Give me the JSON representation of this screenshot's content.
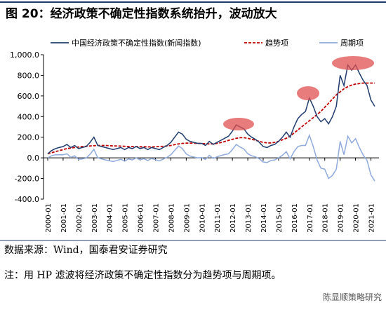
{
  "chart_data": {
    "type": "line",
    "title": "图 20：经济政策不确定性指数系统抬升，波动放大",
    "source": "数据来源：Wind，国泰君安证券研究",
    "note": "注：用 HP 滤波将经济政策不确定性指数分为趋势项与周期项。",
    "watermark": "陈显顺策略研究",
    "x": [
      "2000-01",
      "2000-04",
      "2000-07",
      "2000-10",
      "2001-01",
      "2001-04",
      "2001-07",
      "2001-10",
      "2002-01",
      "2002-04",
      "2002-07",
      "2002-10",
      "2003-01",
      "2003-04",
      "2003-07",
      "2003-10",
      "2004-01",
      "2004-04",
      "2004-07",
      "2004-10",
      "2005-01",
      "2005-04",
      "2005-07",
      "2005-10",
      "2006-01",
      "2006-04",
      "2006-07",
      "2006-10",
      "2007-01",
      "2007-04",
      "2007-07",
      "2007-10",
      "2008-01",
      "2008-04",
      "2008-07",
      "2008-10",
      "2009-01",
      "2009-04",
      "2009-07",
      "2009-10",
      "2010-01",
      "2010-04",
      "2010-07",
      "2010-10",
      "2011-01",
      "2011-04",
      "2011-07",
      "2011-10",
      "2012-01",
      "2012-04",
      "2012-07",
      "2012-10",
      "2013-01",
      "2013-04",
      "2013-07",
      "2013-10",
      "2014-01",
      "2014-04",
      "2014-07",
      "2014-10",
      "2015-01",
      "2015-04",
      "2015-07",
      "2015-10",
      "2016-01",
      "2016-04",
      "2016-07",
      "2016-10",
      "2017-01",
      "2017-04",
      "2017-07",
      "2017-10",
      "2018-01",
      "2018-04",
      "2018-07",
      "2018-10",
      "2019-01",
      "2019-04",
      "2019-07",
      "2019-10",
      "2020-01",
      "2020-04",
      "2020-07",
      "2020-10",
      "2021-01",
      "2021-04"
    ],
    "series": [
      {
        "name": "中国经济政策不确定性指数(新闻指数)",
        "color": "#1f3c6e",
        "style": "solid",
        "values": [
          40,
          70,
          90,
          100,
          110,
          130,
          100,
          120,
          90,
          100,
          110,
          150,
          200,
          120,
          110,
          100,
          90,
          80,
          90,
          100,
          80,
          100,
          90,
          110,
          90,
          100,
          80,
          100,
          90,
          80,
          100,
          120,
          150,
          200,
          250,
          230,
          180,
          160,
          150,
          140,
          140,
          120,
          160,
          130,
          150,
          170,
          190,
          210,
          260,
          320,
          300,
          280,
          230,
          200,
          180,
          150,
          110,
          100,
          120,
          130,
          160,
          200,
          250,
          200,
          300,
          380,
          420,
          450,
          580,
          500,
          400,
          350,
          380,
          330,
          400,
          500,
          800,
          700,
          900,
          850,
          900,
          820,
          750,
          700,
          560,
          500
        ]
      },
      {
        "name": "趋势项",
        "color": "#c00000",
        "style": "dashed",
        "values": [
          40,
          50,
          60,
          70,
          80,
          90,
          95,
          100,
          105,
          110,
          112,
          115,
          118,
          120,
          120,
          120,
          118,
          116,
          115,
          114,
          112,
          110,
          110,
          110,
          108,
          108,
          106,
          106,
          108,
          110,
          112,
          115,
          120,
          128,
          135,
          140,
          142,
          143,
          142,
          140,
          138,
          136,
          135,
          136,
          140,
          148,
          158,
          170,
          180,
          190,
          195,
          195,
          190,
          180,
          170,
          160,
          150,
          145,
          145,
          150,
          160,
          175,
          190,
          210,
          240,
          270,
          300,
          330,
          360,
          390,
          420,
          450,
          490,
          530,
          570,
          610,
          640,
          670,
          690,
          705,
          715,
          720,
          725,
          725,
          725,
          725
        ]
      },
      {
        "name": "周期项",
        "color": "#8faadc",
        "style": "solid",
        "values": [
          0,
          20,
          30,
          30,
          30,
          40,
          5,
          20,
          -15,
          -10,
          -2,
          35,
          82,
          0,
          -10,
          -20,
          -28,
          -36,
          -25,
          -14,
          -32,
          -10,
          -20,
          0,
          -18,
          -8,
          -26,
          -6,
          -18,
          -30,
          -12,
          5,
          30,
          72,
          115,
          90,
          38,
          17,
          8,
          0,
          2,
          -16,
          25,
          -6,
          10,
          22,
          32,
          40,
          80,
          130,
          105,
          85,
          40,
          20,
          10,
          -10,
          -40,
          -45,
          -25,
          -20,
          0,
          25,
          60,
          -10,
          60,
          110,
          120,
          120,
          220,
          110,
          -20,
          -100,
          -110,
          -200,
          -170,
          -110,
          160,
          30,
          210,
          145,
          185,
          100,
          25,
          -25,
          -165,
          -225
        ]
      }
    ],
    "xticks": [
      "2000-01",
      "2001-01",
      "2002-01",
      "2003-01",
      "2004-01",
      "2005-01",
      "2006-01",
      "2007-01",
      "2008-01",
      "2009-01",
      "2010-01",
      "2011-01",
      "2012-01",
      "2013-01",
      "2014-01",
      "2015-01",
      "2016-01",
      "2017-01",
      "2018-01",
      "2019-01",
      "2020-01",
      "2021-01"
    ],
    "ylim": [
      -400,
      1000
    ],
    "yticks": [
      {
        "value": 1000,
        "label": "1,000.0"
      },
      {
        "value": 800,
        "label": "800.0"
      },
      {
        "value": 600,
        "label": "600.0"
      },
      {
        "value": 400,
        "label": "400.0"
      },
      {
        "value": 200,
        "label": "200.0"
      },
      {
        "value": 0,
        "label": "0.0"
      },
      {
        "value": -200,
        "label": "-200.0"
      },
      {
        "value": -400,
        "label": "-400.0"
      }
    ],
    "legend": "top"
  }
}
